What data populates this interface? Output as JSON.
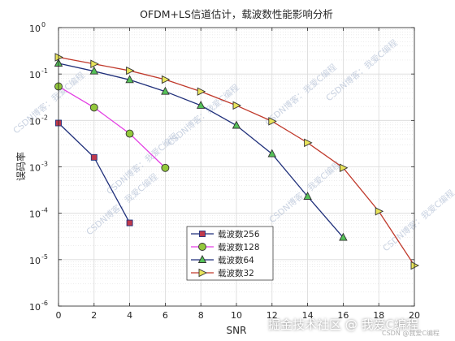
{
  "chart_data": {
    "type": "line",
    "title": "OFDM+LS信道估计，载波数性能影响分析",
    "xlabel": "SNR",
    "ylabel": "误码率",
    "xlim": [
      0,
      20
    ],
    "ylim": [
      1e-06,
      1
    ],
    "yscale": "log",
    "grid": true,
    "legend_position": "bottom-center",
    "x_ticks": [
      "0",
      "2",
      "4",
      "6",
      "8",
      "10",
      "12",
      "14",
      "16",
      "18",
      "20"
    ],
    "y_tick_exponents": [
      "-6",
      "-5",
      "-4",
      "-3",
      "-2",
      "-1",
      "0"
    ],
    "y_tick_base": "10",
    "series": [
      {
        "name": "载波数256",
        "color": "#1f2f7a",
        "marker": "square",
        "marker_fill": "#c0394b",
        "x": [
          0,
          2,
          4
        ],
        "y": [
          0.0088,
          0.0016,
          6.2e-05
        ]
      },
      {
        "name": "载波数128",
        "color": "#e33ee3",
        "marker": "circle",
        "marker_fill": "#93c83c",
        "x": [
          0,
          2,
          4,
          6
        ],
        "y": [
          0.054,
          0.019,
          0.0052,
          0.00095
        ]
      },
      {
        "name": "载波数64",
        "color": "#1f2f7a",
        "marker": "triangle-up",
        "marker_fill": "#54c158",
        "x": [
          0,
          2,
          4,
          6,
          8,
          10,
          12,
          14,
          16
        ],
        "y": [
          0.17,
          0.115,
          0.075,
          0.042,
          0.021,
          0.0078,
          0.0019,
          0.00023,
          3e-05
        ]
      },
      {
        "name": "载波数32",
        "color": "#c0392b",
        "marker": "triangle-right",
        "marker_fill": "#e8e35a",
        "x": [
          0,
          2,
          4,
          6,
          8,
          10,
          12,
          14,
          16,
          18,
          20
        ],
        "y": [
          0.23,
          0.165,
          0.118,
          0.076,
          0.042,
          0.021,
          0.0096,
          0.0033,
          0.00095,
          0.00011,
          7.5e-06
        ]
      }
    ]
  },
  "watermarks": {
    "diagonal": "CSDN博客：我爱C编程",
    "footer_main": "掘金技术社区 @ 我爱C编程",
    "footer_sub": "CSDN @我爱C编程"
  }
}
